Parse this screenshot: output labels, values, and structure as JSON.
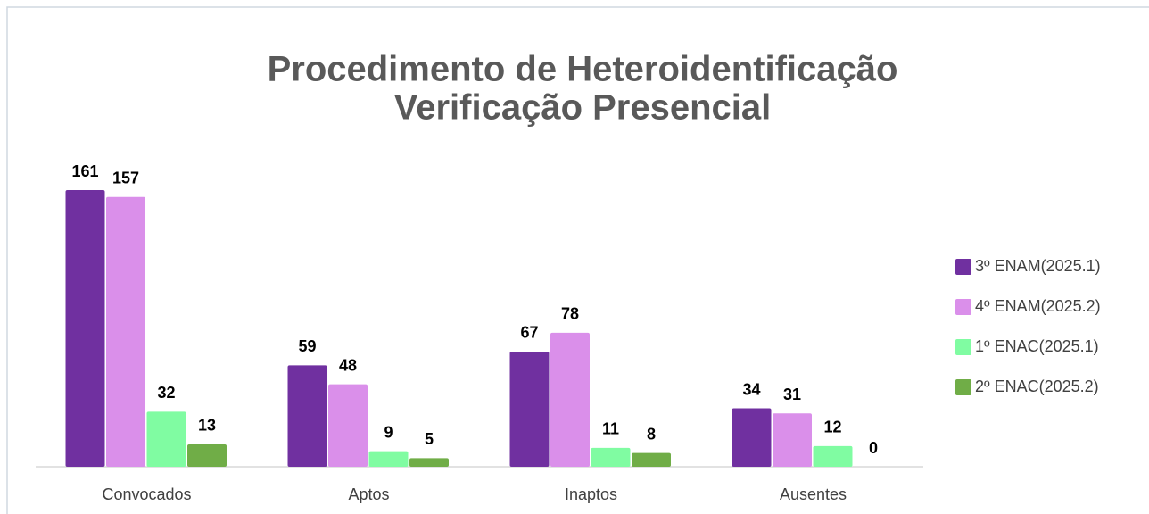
{
  "chart_data": {
    "type": "bar",
    "title": [
      "Procedimento de Heteroidentificação",
      "Verificação Presencial"
    ],
    "categories": [
      "Convocados",
      "Aptos",
      "Inaptos",
      "Ausentes"
    ],
    "series": [
      {
        "name": "3º ENAM(2025.1)",
        "color": "#7030a0",
        "values": [
          161,
          59,
          67,
          34
        ]
      },
      {
        "name": "4º ENAM(2025.2)",
        "color": "#da8fea",
        "values": [
          157,
          48,
          78,
          31
        ]
      },
      {
        "name": "1º ENAC(2025.1)",
        "color": "#80fca2",
        "values": [
          32,
          9,
          11,
          12
        ]
      },
      {
        "name": "2º ENAC(2025.2)",
        "color": "#70ad47",
        "values": [
          13,
          5,
          8,
          0
        ]
      }
    ],
    "legend": "right"
  }
}
